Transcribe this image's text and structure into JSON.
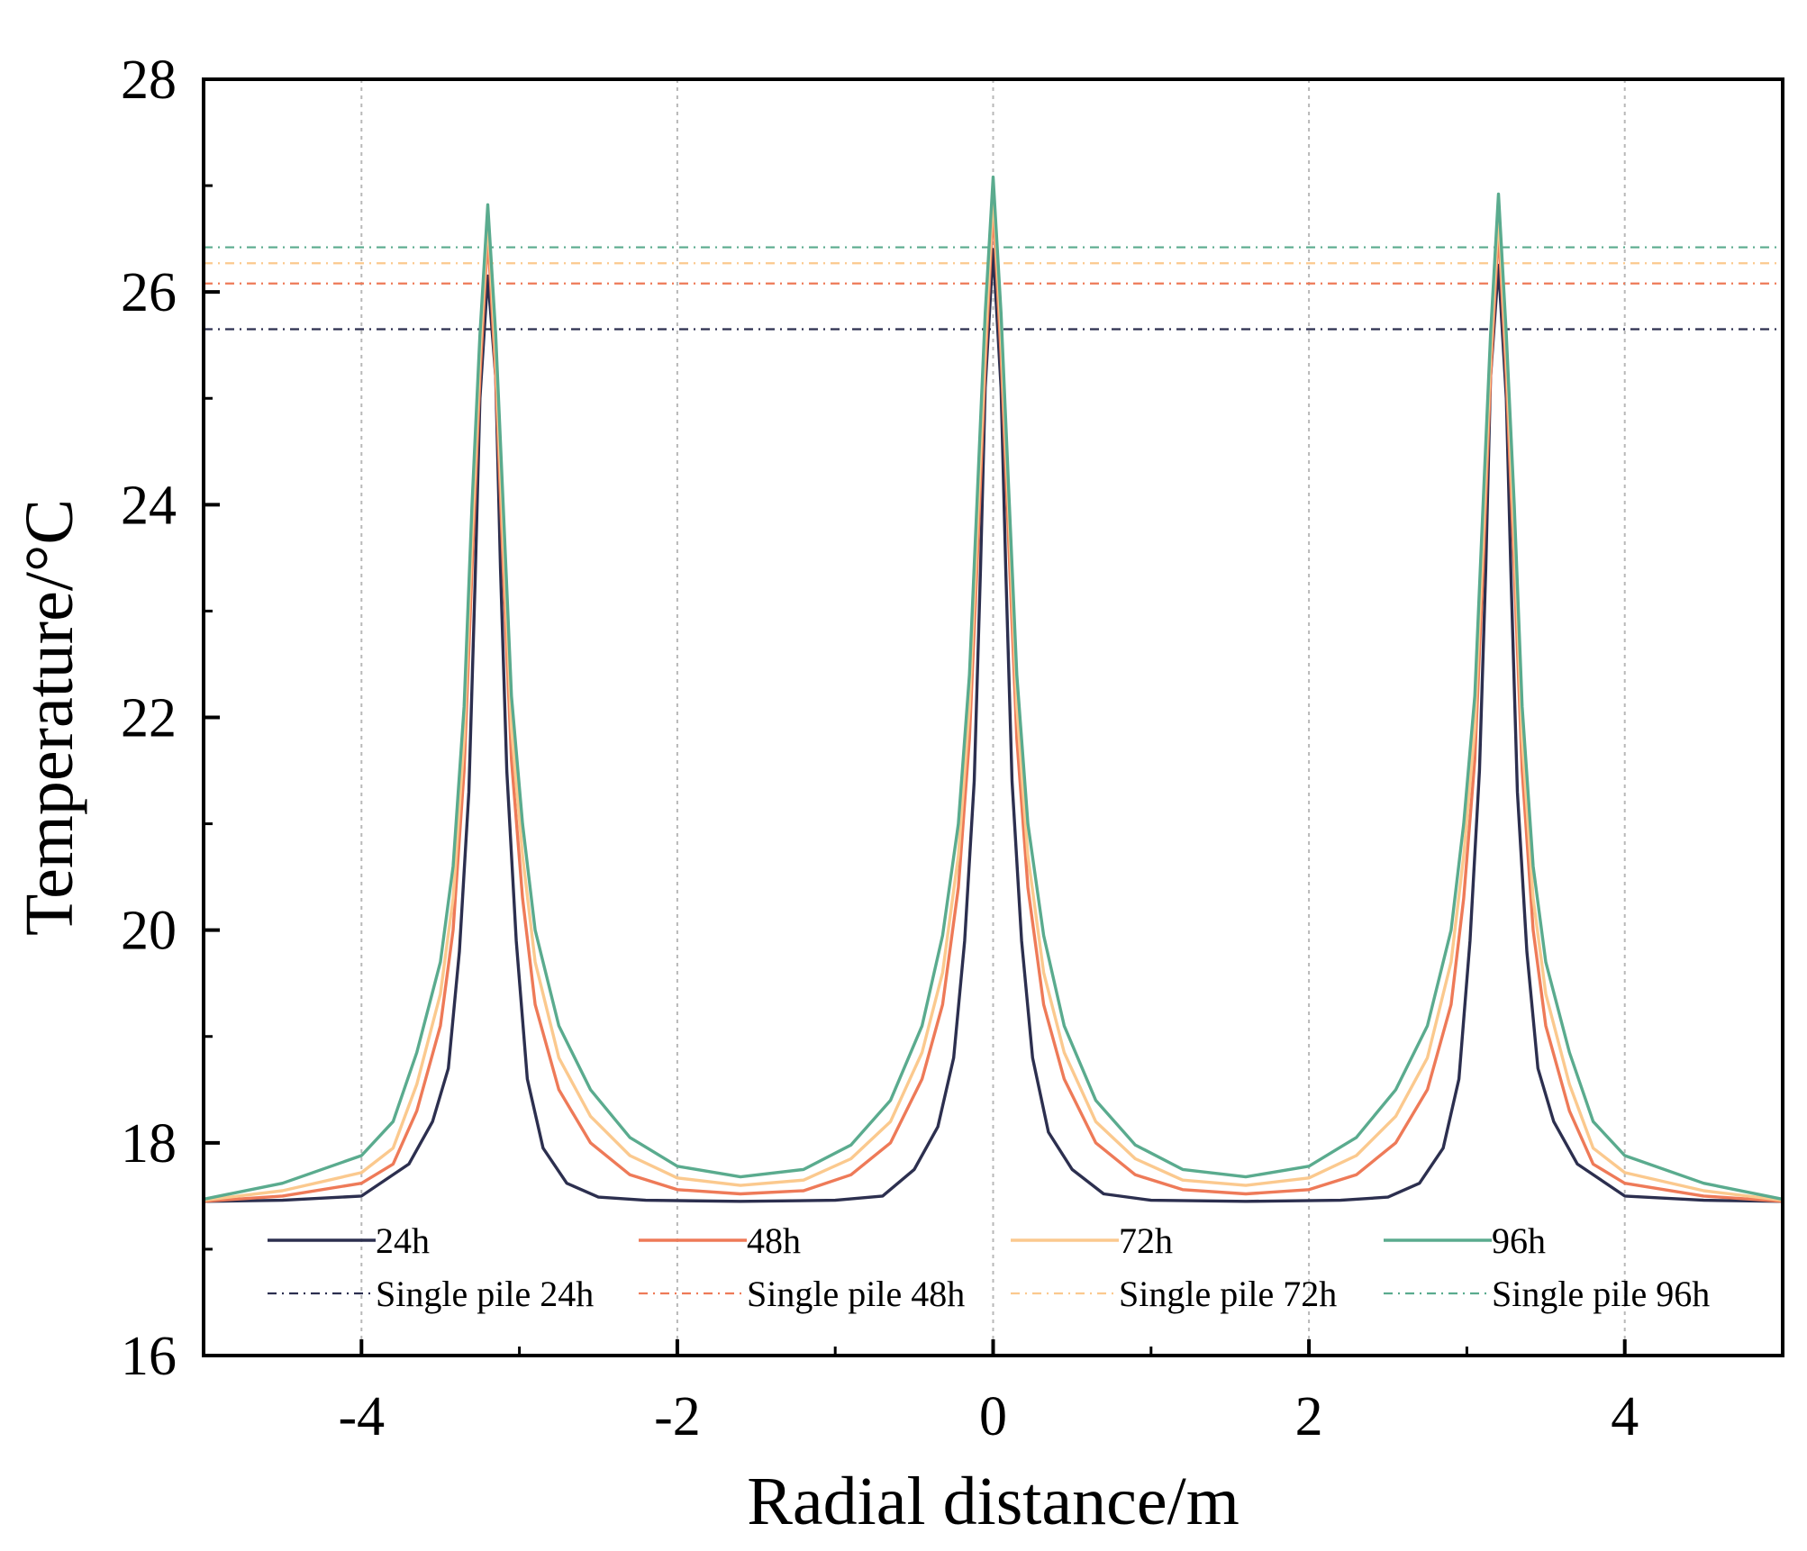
{
  "chart_data": {
    "type": "line",
    "title": "",
    "xlabel": "Radial distance/m",
    "ylabel": "Temperature/°C",
    "xlim": [
      -5,
      5
    ],
    "ylim": [
      16,
      28
    ],
    "x_ticks": [
      -4,
      -2,
      0,
      2,
      4
    ],
    "x_tick_labels": [
      "-4",
      "-2",
      "0",
      "2",
      "4"
    ],
    "y_ticks": [
      16,
      18,
      20,
      22,
      24,
      26,
      28
    ],
    "y_tick_labels": [
      "16",
      "18",
      "20",
      "22",
      "24",
      "26",
      "28"
    ],
    "grid": "vertical dotted at major x ticks",
    "legend_position": "bottom inside plot, 4 columns",
    "pile_positions": [
      -3.2,
      0.0,
      3.2
    ],
    "series": [
      {
        "name": "24h",
        "style": "solid",
        "color": "#2c2f4f",
        "peaks": [
          26.15,
          26.4,
          26.25
        ],
        "x": [
          -5.0,
          -4.5,
          -4.0,
          -3.7,
          -3.55,
          -3.45,
          -3.38,
          -3.32,
          -3.28,
          -3.25,
          -3.2,
          -3.15,
          -3.12,
          -3.08,
          -3.02,
          -2.95,
          -2.85,
          -2.7,
          -2.5,
          -2.2,
          -1.6,
          -1.0,
          -0.7,
          -0.5,
          -0.35,
          -0.25,
          -0.18,
          -0.12,
          -0.08,
          -0.05,
          0.0,
          0.05,
          0.08,
          0.12,
          0.18,
          0.25,
          0.35,
          0.5,
          0.7,
          1.0,
          1.6,
          2.2,
          2.5,
          2.7,
          2.85,
          2.95,
          3.02,
          3.08,
          3.12,
          3.15,
          3.2,
          3.25,
          3.28,
          3.32,
          3.38,
          3.45,
          3.55,
          3.7,
          4.0,
          4.5,
          5.0
        ],
        "y": [
          17.45,
          17.46,
          17.5,
          17.8,
          18.2,
          18.7,
          19.8,
          21.3,
          23.3,
          25.0,
          26.15,
          25.2,
          23.4,
          21.5,
          19.9,
          18.6,
          17.95,
          17.62,
          17.49,
          17.46,
          17.45,
          17.46,
          17.5,
          17.75,
          18.15,
          18.8,
          19.9,
          21.4,
          23.4,
          25.1,
          26.4,
          25.1,
          23.4,
          21.4,
          19.9,
          18.8,
          18.1,
          17.75,
          17.52,
          17.46,
          17.45,
          17.46,
          17.49,
          17.62,
          17.95,
          18.6,
          19.9,
          21.5,
          23.4,
          25.2,
          26.25,
          25.0,
          23.3,
          21.3,
          19.8,
          18.7,
          18.2,
          17.8,
          17.5,
          17.46,
          17.45
        ]
      },
      {
        "name": "48h",
        "style": "solid",
        "color": "#ee7a58",
        "peaks": [
          26.55,
          26.8,
          26.6
        ],
        "x": [
          -5.0,
          -4.5,
          -4.0,
          -3.8,
          -3.65,
          -3.5,
          -3.42,
          -3.35,
          -3.3,
          -3.25,
          -3.2,
          -3.15,
          -3.1,
          -3.05,
          -2.98,
          -2.9,
          -2.75,
          -2.55,
          -2.3,
          -2.0,
          -1.6,
          -1.2,
          -0.9,
          -0.65,
          -0.45,
          -0.32,
          -0.22,
          -0.15,
          -0.1,
          -0.05,
          0.0,
          0.05,
          0.1,
          0.15,
          0.22,
          0.32,
          0.45,
          0.65,
          0.9,
          1.2,
          1.6,
          2.0,
          2.3,
          2.55,
          2.75,
          2.9,
          2.98,
          3.05,
          3.1,
          3.15,
          3.2,
          3.25,
          3.3,
          3.35,
          3.42,
          3.5,
          3.65,
          3.8,
          4.0,
          4.5,
          5.0
        ],
        "y": [
          17.45,
          17.5,
          17.62,
          17.8,
          18.3,
          19.1,
          20.0,
          21.5,
          23.4,
          25.2,
          26.55,
          25.2,
          23.3,
          21.6,
          20.3,
          19.3,
          18.5,
          18.0,
          17.7,
          17.56,
          17.52,
          17.55,
          17.7,
          18.0,
          18.6,
          19.3,
          20.4,
          21.8,
          23.5,
          25.3,
          26.8,
          25.4,
          23.6,
          21.8,
          20.4,
          19.3,
          18.6,
          18.0,
          17.7,
          17.56,
          17.52,
          17.56,
          17.7,
          18.0,
          18.5,
          19.3,
          20.3,
          21.6,
          23.3,
          25.2,
          26.6,
          25.2,
          23.4,
          21.5,
          20.0,
          19.1,
          18.3,
          17.8,
          17.62,
          17.5,
          17.45
        ]
      },
      {
        "name": "72h",
        "style": "solid",
        "color": "#fbc98e",
        "peaks": [
          26.7,
          26.95,
          26.75
        ],
        "x": [
          -5.0,
          -4.5,
          -4.0,
          -3.8,
          -3.65,
          -3.5,
          -3.42,
          -3.35,
          -3.3,
          -3.25,
          -3.2,
          -3.15,
          -3.1,
          -3.05,
          -2.98,
          -2.9,
          -2.75,
          -2.55,
          -2.3,
          -2.0,
          -1.6,
          -1.2,
          -0.9,
          -0.65,
          -0.45,
          -0.32,
          -0.22,
          -0.15,
          -0.1,
          -0.05,
          0.0,
          0.05,
          0.1,
          0.15,
          0.22,
          0.32,
          0.45,
          0.65,
          0.9,
          1.2,
          1.6,
          2.0,
          2.3,
          2.55,
          2.75,
          2.9,
          2.98,
          3.05,
          3.1,
          3.15,
          3.2,
          3.25,
          3.3,
          3.35,
          3.42,
          3.5,
          3.65,
          3.8,
          4.0,
          4.5,
          5.0
        ],
        "y": [
          17.46,
          17.55,
          17.72,
          17.95,
          18.55,
          19.4,
          20.3,
          21.8,
          23.7,
          25.4,
          26.7,
          25.4,
          23.6,
          21.9,
          20.7,
          19.7,
          18.8,
          18.25,
          17.88,
          17.67,
          17.6,
          17.65,
          17.85,
          18.2,
          18.85,
          19.6,
          20.7,
          22.1,
          23.8,
          25.5,
          26.95,
          25.6,
          23.9,
          22.1,
          20.7,
          19.6,
          18.85,
          18.2,
          17.85,
          17.65,
          17.6,
          17.67,
          17.88,
          18.25,
          18.8,
          19.7,
          20.7,
          21.9,
          23.6,
          25.4,
          26.75,
          25.4,
          23.7,
          21.8,
          20.3,
          19.4,
          18.55,
          17.95,
          17.72,
          17.55,
          17.46
        ]
      },
      {
        "name": "96h",
        "style": "solid",
        "color": "#5aab8e",
        "peaks": [
          26.82,
          27.08,
          26.92
        ],
        "x": [
          -5.0,
          -4.5,
          -4.0,
          -3.8,
          -3.65,
          -3.5,
          -3.42,
          -3.35,
          -3.3,
          -3.25,
          -3.2,
          -3.15,
          -3.1,
          -3.05,
          -2.98,
          -2.9,
          -2.75,
          -2.55,
          -2.3,
          -2.0,
          -1.6,
          -1.2,
          -0.9,
          -0.65,
          -0.45,
          -0.32,
          -0.22,
          -0.15,
          -0.1,
          -0.05,
          0.0,
          0.05,
          0.1,
          0.15,
          0.22,
          0.32,
          0.45,
          0.65,
          0.9,
          1.2,
          1.6,
          2.0,
          2.3,
          2.55,
          2.75,
          2.9,
          2.98,
          3.05,
          3.1,
          3.15,
          3.2,
          3.25,
          3.3,
          3.35,
          3.42,
          3.5,
          3.65,
          3.8,
          4.0,
          4.5,
          5.0
        ],
        "y": [
          17.47,
          17.62,
          17.88,
          18.2,
          18.85,
          19.7,
          20.6,
          22.1,
          24.0,
          25.6,
          26.82,
          25.6,
          23.9,
          22.2,
          21.0,
          20.0,
          19.1,
          18.5,
          18.05,
          17.78,
          17.68,
          17.75,
          17.98,
          18.4,
          19.1,
          19.95,
          21.0,
          22.4,
          24.1,
          25.8,
          27.08,
          25.8,
          24.1,
          22.4,
          21.0,
          19.95,
          19.1,
          18.4,
          17.98,
          17.75,
          17.68,
          17.78,
          18.05,
          18.5,
          19.1,
          20.0,
          21.0,
          22.2,
          23.9,
          25.6,
          26.92,
          25.6,
          24.0,
          22.1,
          20.6,
          19.7,
          18.85,
          18.2,
          17.88,
          17.62,
          17.47
        ]
      }
    ],
    "reference_lines": [
      {
        "name": "Single pile 24h",
        "value": 25.65,
        "style": "dash-dot",
        "color": "#2c2f4f"
      },
      {
        "name": "Single pile 48h",
        "value": 26.08,
        "style": "dash-dot",
        "color": "#ee7a58"
      },
      {
        "name": "Single pile 72h",
        "value": 26.27,
        "style": "dash-dot",
        "color": "#fbc98e"
      },
      {
        "name": "Single pile 96h",
        "value": 26.42,
        "style": "dash-dot",
        "color": "#5aab8e"
      }
    ]
  }
}
